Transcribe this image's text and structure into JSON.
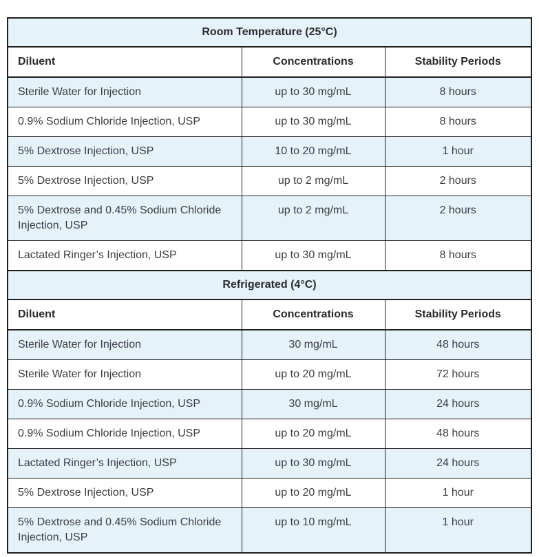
{
  "table": {
    "columns": [
      "Diluent",
      "Concentrations",
      "Stability Periods"
    ],
    "sections": [
      {
        "title": "Room Temperature (25°C)",
        "rows": [
          [
            "Sterile Water for Injection",
            "up to 30 mg/mL",
            "8 hours"
          ],
          [
            "0.9% Sodium Chloride Injection, USP",
            "up to 30 mg/mL",
            "8 hours"
          ],
          [
            "5% Dextrose Injection, USP",
            "10 to 20 mg/mL",
            "1 hour"
          ],
          [
            "5% Dextrose Injection, USP",
            "up to 2 mg/mL",
            "2 hours"
          ],
          [
            "5% Dextrose and 0.45% Sodium Chloride Injection, USP",
            "up to 2 mg/mL",
            "2 hours"
          ],
          [
            "Lactated Ringer’s Injection, USP",
            "up to 30 mg/mL",
            "8 hours"
          ]
        ]
      },
      {
        "title": "Refrigerated (4°C)",
        "rows": [
          [
            "Sterile Water for Injection",
            "30 mg/mL",
            "48 hours"
          ],
          [
            "Sterile Water for Injection",
            "up to 20 mg/mL",
            "72 hours"
          ],
          [
            "0.9% Sodium Chloride Injection, USP",
            "30 mg/mL",
            "24 hours"
          ],
          [
            "0.9% Sodium Chloride Injection, USP",
            "up to 20 mg/mL",
            "48 hours"
          ],
          [
            "Lactated Ringer’s Injection, USP",
            "up to 30 mg/mL",
            "24 hours"
          ],
          [
            "5% Dextrose Injection, USP",
            "up to 20 mg/mL",
            "1 hour"
          ],
          [
            "5% Dextrose and 0.45% Sodium Chloride Injection, USP",
            "up to 10 mg/mL",
            "1 hour"
          ]
        ]
      }
    ]
  },
  "colors": {
    "row_highlight": "#e5f2fa",
    "border": "#1f1f1f",
    "text": "#3d3d3d",
    "header_text": "#2b2b2b",
    "background": "#ffffff"
  }
}
